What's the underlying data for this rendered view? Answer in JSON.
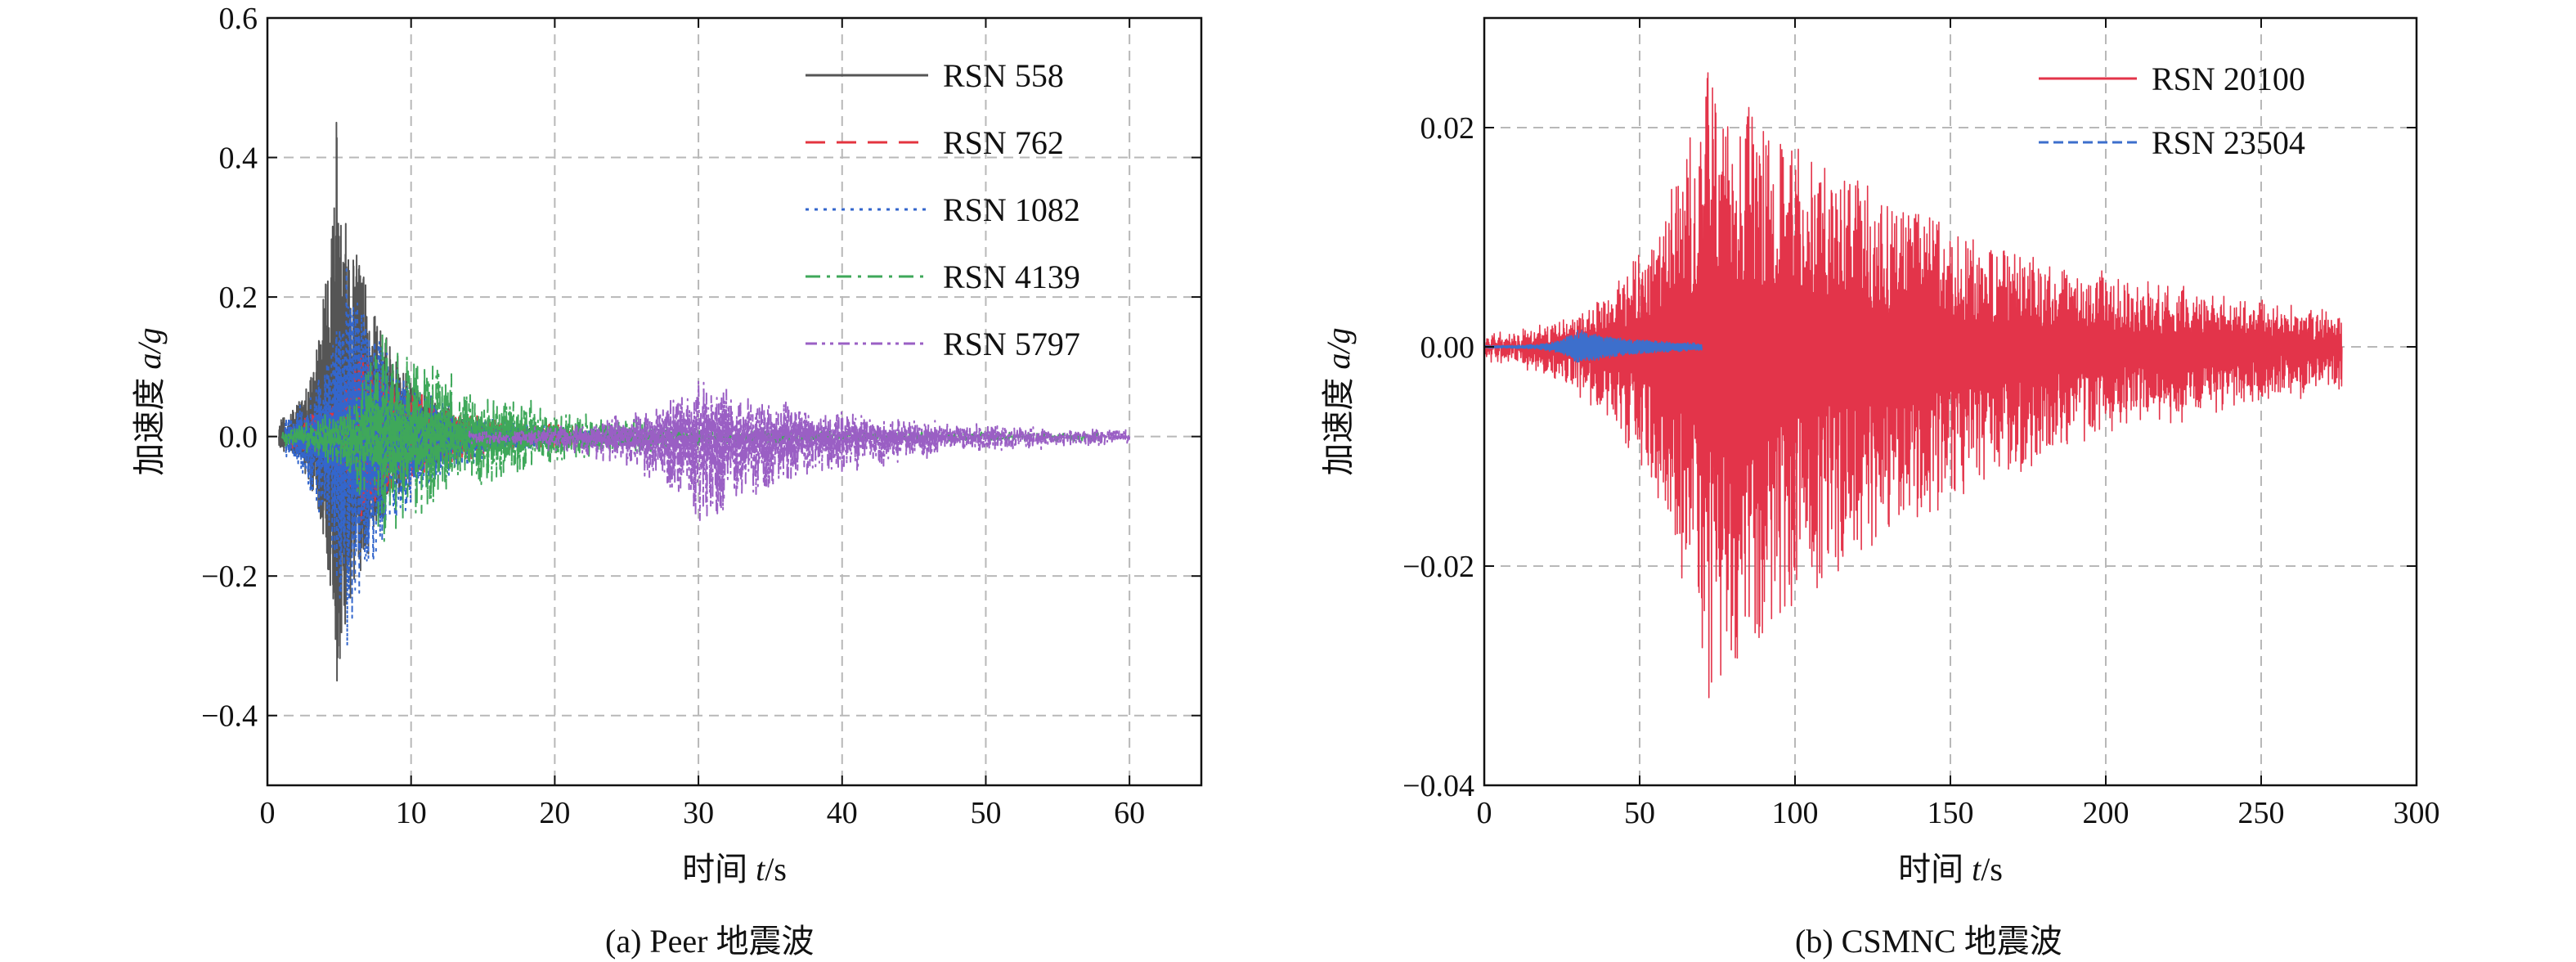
{
  "chart_data": [
    {
      "type": "line",
      "caption": "(a) Peer 地震波",
      "xlabel_prefix": "时间 ",
      "xlabel_var": "t",
      "xlabel_unit": "/s",
      "ylabel_prefix": "加速度 ",
      "ylabel_var": "a/g",
      "xlim": [
        0,
        65
      ],
      "ylim": [
        -0.5,
        0.6
      ],
      "xticks": [
        0,
        10,
        20,
        30,
        40,
        50,
        60
      ],
      "xtick_labels": [
        "0",
        "10",
        "20",
        "30",
        "40",
        "50",
        "60"
      ],
      "yticks": [
        -0.4,
        -0.2,
        0.0,
        0.2,
        0.4,
        0.6
      ],
      "ytick_labels": [
        "−0.4",
        "−0.2",
        "0.0",
        "0.2",
        "0.4",
        "0.6"
      ],
      "grid": true,
      "legend_position": "top-right",
      "series": [
        {
          "name": "RSN 558",
          "color": "#555555",
          "dash": "solid",
          "t_start": 0.8,
          "t_end": 19,
          "peak_time": 4.8,
          "rise": 1.6,
          "decay": 3.0,
          "peak_amplitude": 0.45,
          "positive_peak": 0.45,
          "negative_peak": -0.35,
          "noise_floor": 0.01
        },
        {
          "name": "RSN 762",
          "color": "#e3343f",
          "dash": "long-dash",
          "t_start": 1.5,
          "t_end": 22,
          "peak_time": 6.5,
          "rise": 3.0,
          "decay": 5.0,
          "peak_amplitude": 0.12,
          "positive_peak": 0.12,
          "negative_peak": -0.12,
          "noise_floor": 0.01
        },
        {
          "name": "RSN 1082",
          "color": "#3366cc",
          "dash": "dotted",
          "t_start": 1.2,
          "t_end": 26,
          "peak_time": 5.5,
          "rise": 2.5,
          "decay": 4.0,
          "peak_amplitude": 0.24,
          "positive_peak": 0.24,
          "negative_peak": -0.3,
          "noise_floor": 0.01
        },
        {
          "name": "RSN 4139",
          "color": "#3fa85a",
          "dash": "dash-dot",
          "t_start": 1.0,
          "t_end": 58,
          "peak_time": 8.0,
          "rise": 3.5,
          "decay": 9.0,
          "peak_amplitude": 0.15,
          "positive_peak": 0.15,
          "negative_peak": -0.15,
          "noise_floor": 0.006
        },
        {
          "name": "RSN 5797",
          "color": "#9a5fc4",
          "dash": "dash-dot-dot",
          "t_start": 14,
          "t_end": 60,
          "peak_time": 30.0,
          "rise": 7.0,
          "decay": 11.0,
          "peak_amplitude": 0.08,
          "positive_peak": 0.08,
          "negative_peak": -0.12,
          "noise_floor": 0.006
        }
      ]
    },
    {
      "type": "line",
      "caption": "(b) CSMNC 地震波",
      "xlabel_prefix": "时间 ",
      "xlabel_var": "t",
      "xlabel_unit": "/s",
      "ylabel_prefix": "加速度 ",
      "ylabel_var": "a/g",
      "xlim": [
        0,
        300
      ],
      "ylim": [
        -0.04,
        0.03
      ],
      "xticks": [
        0,
        50,
        100,
        150,
        200,
        250,
        300
      ],
      "xtick_labels": [
        "0",
        "50",
        "100",
        "150",
        "200",
        "250",
        "300"
      ],
      "yticks": [
        -0.04,
        -0.02,
        0.0,
        0.02
      ],
      "ytick_labels": [
        "−0.04",
        "−0.02",
        "0.00",
        "0.02"
      ],
      "grid": true,
      "legend_position": "top-right",
      "series": [
        {
          "name": "RSN 20100",
          "color": "#e3344a",
          "dash": "solid",
          "t_start": 0,
          "t_end": 276,
          "peak_time": 72,
          "rise": 28,
          "decay": 95,
          "peak_amplitude": 0.024,
          "positive_peak": 0.025,
          "negative_peak": -0.032,
          "noise_floor": 0.0006
        },
        {
          "name": "RSN 23504",
          "color": "#3d6fcc",
          "dash": "dashed",
          "t_start": 0,
          "t_end": 70,
          "peak_time": 30,
          "rise": 8,
          "decay": 22,
          "peak_amplitude": 0.0015,
          "positive_peak": 0.0015,
          "negative_peak": -0.0015,
          "noise_floor": 0.0001
        }
      ]
    }
  ]
}
